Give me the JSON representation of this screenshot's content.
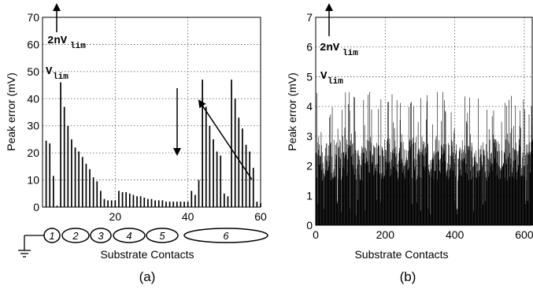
{
  "chart_data": [
    {
      "panel": "a",
      "type": "bar",
      "caption": "(a)",
      "xlabel": "Substrate Contacts",
      "ylabel": "Peak error (mV)",
      "xlim": [
        0,
        60
      ],
      "ylim": [
        0,
        70
      ],
      "xticks": [
        20,
        40,
        60
      ],
      "yticks": [
        0,
        10,
        20,
        30,
        40,
        50,
        60,
        70
      ],
      "grid": true,
      "x": [
        1,
        2,
        3,
        4,
        5,
        6,
        7,
        8,
        9,
        10,
        11,
        12,
        13,
        14,
        15,
        16,
        17,
        18,
        19,
        20,
        21,
        22,
        23,
        24,
        25,
        26,
        27,
        28,
        29,
        30,
        31,
        32,
        33,
        34,
        35,
        36,
        37,
        38,
        39,
        40,
        41,
        42,
        43,
        44,
        45,
        46,
        47,
        48,
        49,
        50,
        51,
        52,
        53,
        54,
        55,
        56,
        57,
        58,
        59,
        60
      ],
      "values": [
        24.5,
        23.5,
        11.5,
        0.5,
        46,
        37,
        30,
        25,
        22,
        20.5,
        18.5,
        16,
        14,
        11,
        9.5,
        6,
        3,
        2.5,
        2.5,
        2.5,
        6,
        5.5,
        5.5,
        5,
        4.5,
        4,
        4,
        3.5,
        3,
        3,
        2.5,
        2.5,
        2.5,
        2,
        2,
        2,
        2,
        2,
        2,
        2,
        6,
        4.5,
        10,
        47,
        37,
        30,
        25,
        20.5,
        19,
        5,
        4,
        47,
        40,
        33,
        29,
        23,
        20.5,
        14.5,
        2,
        1.5
      ],
      "annotations": [
        {
          "text": "2nV",
          "sub": "lim"
        },
        {
          "text": "V",
          "sub": "lim"
        }
      ],
      "contacts": [
        "1",
        "2",
        "3",
        "4",
        "5",
        "6"
      ]
    },
    {
      "panel": "b",
      "type": "bar",
      "caption": "(b)",
      "xlabel": "Substrate Contacts",
      "ylabel": "Peak error (mV)",
      "xlim": [
        0,
        625
      ],
      "ylim": [
        0,
        7
      ],
      "xticks": [
        0,
        200,
        400,
        600
      ],
      "yticks": [
        0,
        1,
        2,
        3,
        4,
        5,
        6,
        7
      ],
      "grid": true,
      "n_contacts": 625,
      "value_range": [
        0.3,
        4.5
      ],
      "annotations": [
        {
          "text": "2nV",
          "sub": "lim"
        },
        {
          "text": "V",
          "sub": "lim"
        }
      ]
    }
  ]
}
